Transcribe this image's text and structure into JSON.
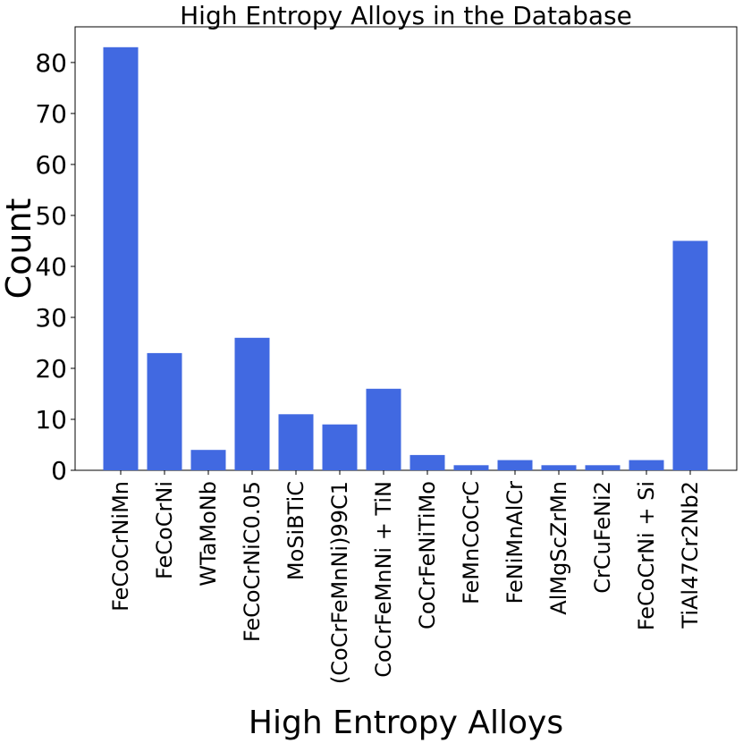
{
  "chart_data": {
    "type": "bar",
    "title": "High Entropy Alloys in the Database",
    "xlabel": "High Entropy Alloys",
    "ylabel": "Count",
    "categories": [
      "FeCoCrNiMn",
      "FeCoCrNi",
      "WTaMoNb",
      "FeCoCrNiC0.05",
      "MoSiBTiC",
      "(CoCrFeMnNi)99C1",
      "CoCrFeMnNi + TiN",
      "CoCrFeNiTiMo",
      "FeMnCoCrC",
      "FeNiMnAlCr",
      "AlMgScZrMn",
      "CrCuFeNi2",
      "FeCoCrNi + Si",
      "TiAl47Cr2Nb2"
    ],
    "values": [
      83,
      23,
      4,
      26,
      11,
      9,
      16,
      3,
      1,
      2,
      1,
      1,
      2,
      45
    ],
    "ylim": [
      0,
      87
    ],
    "yticks": [
      0,
      10,
      20,
      30,
      40,
      50,
      60,
      70,
      80
    ],
    "bar_color": "#4169e1",
    "grid": false,
    "legend": "none"
  }
}
